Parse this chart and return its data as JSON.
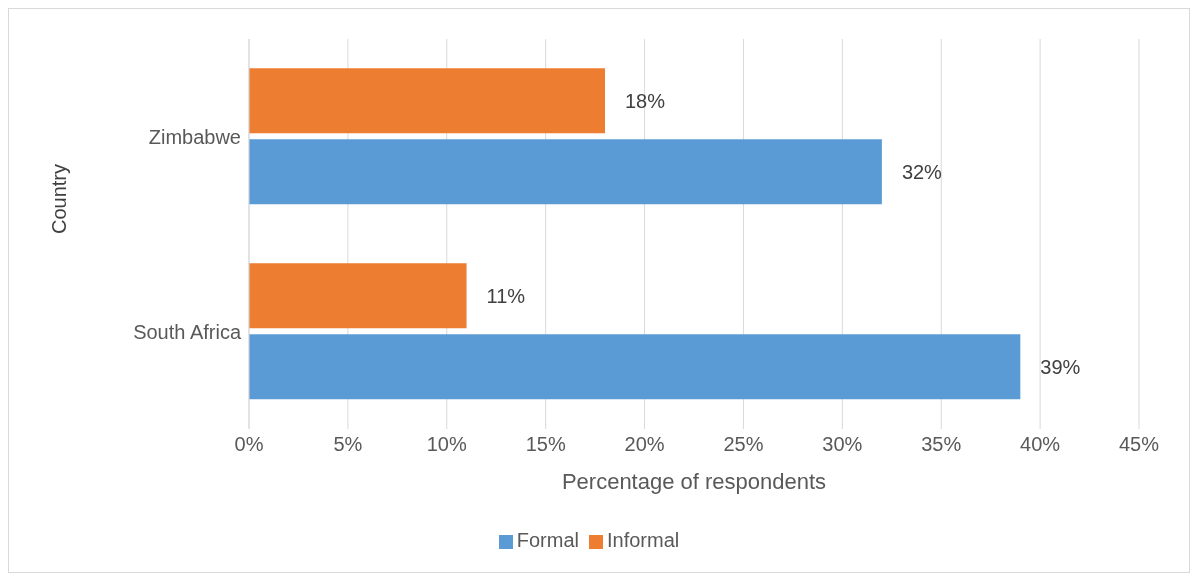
{
  "chart_data": {
    "type": "bar",
    "orientation": "horizontal",
    "categories": [
      "Zimbabwe",
      "South Africa"
    ],
    "series": [
      {
        "name": "Informal",
        "color": "#ed7d31",
        "values": [
          18,
          11
        ],
        "value_labels": [
          "18%",
          "11%"
        ]
      },
      {
        "name": "Formal",
        "color": "#5b9bd5",
        "values": [
          32,
          39
        ],
        "value_labels": [
          "32%",
          "39%"
        ]
      }
    ],
    "xlabel": "Percentage of respondents",
    "ylabel": "Country",
    "xlim": [
      0,
      45
    ],
    "xticks": [
      {
        "value": 0,
        "label": "0%"
      },
      {
        "value": 5,
        "label": "5%"
      },
      {
        "value": 10,
        "label": "10%"
      },
      {
        "value": 15,
        "label": "15%"
      },
      {
        "value": 20,
        "label": "20%"
      },
      {
        "value": 25,
        "label": "25%"
      },
      {
        "value": 30,
        "label": "30%"
      },
      {
        "value": 35,
        "label": "35%"
      },
      {
        "value": 40,
        "label": "40%"
      },
      {
        "value": 45,
        "label": "45%"
      }
    ],
    "grid": "x",
    "legend": "bottom"
  }
}
